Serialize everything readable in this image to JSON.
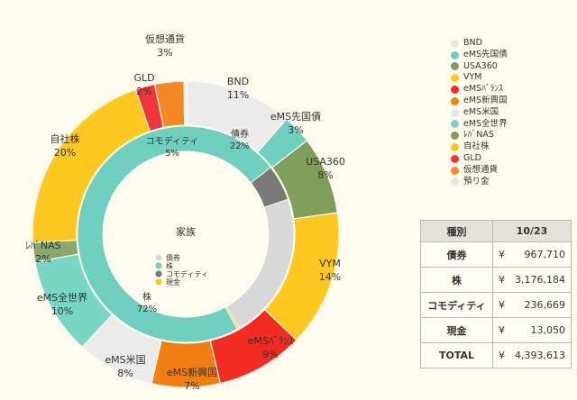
{
  "chart_data": {
    "type": "pie",
    "center_label": "家族",
    "inner_ring": [
      {
        "name": "株",
        "pct_label": "72%",
        "value": 3176184,
        "color": "#6ecfbe"
      },
      {
        "name": "コモディティ",
        "pct_label": "5%",
        "value": 236669,
        "color": "#7a7a7a"
      },
      {
        "name": "債券",
        "pct_label": "22%",
        "value": 967710,
        "color": "#d8d8d8"
      },
      {
        "name": "現金",
        "pct_label": "",
        "value": 13050,
        "color": "#ffc820"
      }
    ],
    "inner_legend": [
      {
        "name": "債券",
        "color": "#d8d8d8"
      },
      {
        "name": "株",
        "color": "#6ecfbe"
      },
      {
        "name": "コモディティ",
        "color": "#7a7a7a"
      },
      {
        "name": "現金",
        "color": "#ffc820"
      }
    ],
    "outer_ring": [
      {
        "name": "BND",
        "pct": 11,
        "pct_label": "11%",
        "color": "#ebebeb"
      },
      {
        "name": "eMS先国債",
        "pct": 3,
        "pct_label": "3%",
        "color": "#6ecfbe"
      },
      {
        "name": "USA360",
        "pct": 8,
        "pct_label": "8%",
        "color": "#7f9e5c"
      },
      {
        "name": "VYM",
        "pct": 14,
        "pct_label": "14%",
        "color": "#ffc820"
      },
      {
        "name": "eMSﾊﾞﾗﾝｽ",
        "pct": 9,
        "pct_label": "9%",
        "color": "#f22b23"
      },
      {
        "name": "eMS新興国",
        "pct": 7,
        "pct_label": "7%",
        "color": "#f07e10"
      },
      {
        "name": "eMS米国",
        "pct": 8,
        "pct_label": "8%",
        "color": "#ebebeb"
      },
      {
        "name": "eMS全世界",
        "pct": 10,
        "pct_label": "10%",
        "color": "#78d6c3"
      },
      {
        "name": "ﾚﾊﾞNAS",
        "pct": 2,
        "pct_label": "2%",
        "color": "#8aa86b"
      },
      {
        "name": "自社株",
        "pct": 20,
        "pct_label": "20%",
        "color": "#ffc820"
      },
      {
        "name": "GLD",
        "pct": 2,
        "pct_label": "2%",
        "color": "#f2353a"
      },
      {
        "name": "仮想通貨",
        "pct": 3,
        "pct_label": "3%",
        "color": "#f58a25"
      },
      {
        "name": "預り金",
        "pct": 0.3,
        "pct_label": "",
        "color": "#ececec"
      }
    ],
    "legend": [
      {
        "name": "BND",
        "color": "#e6e6e6"
      },
      {
        "name": "eMS先国債",
        "color": "#6ecfbe"
      },
      {
        "name": "USA360",
        "color": "#7f9e5c"
      },
      {
        "name": "VYM",
        "color": "#ffc820"
      },
      {
        "name": "eMSﾊﾞﾗﾝｽ",
        "color": "#f22b23"
      },
      {
        "name": "eMS新興国",
        "color": "#f07e10"
      },
      {
        "name": "eMS米国",
        "color": "#e6e6e6"
      },
      {
        "name": "eMS全世界",
        "color": "#78d6c3"
      },
      {
        "name": "ﾚﾊﾞNAS",
        "color": "#7f9e5c"
      },
      {
        "name": "自社株",
        "color": "#ffc820"
      },
      {
        "name": "GLD",
        "color": "#f2353a"
      },
      {
        "name": "仮想通貨",
        "color": "#f58a25"
      },
      {
        "name": "預り金",
        "color": "#e6e6e6"
      }
    ]
  },
  "summary_table": {
    "header": {
      "category": "種別",
      "date": "10/23"
    },
    "rows": [
      {
        "category": "債券",
        "yen": "¥",
        "amount": "967,710"
      },
      {
        "category": "株",
        "yen": "¥",
        "amount": "3,176,184"
      },
      {
        "category": "コモディティ",
        "yen": "¥",
        "amount": "236,669"
      },
      {
        "category": "現金",
        "yen": "¥",
        "amount": "13,050"
      },
      {
        "category": "TOTAL",
        "yen": "¥",
        "amount": "4,393,613"
      }
    ]
  }
}
